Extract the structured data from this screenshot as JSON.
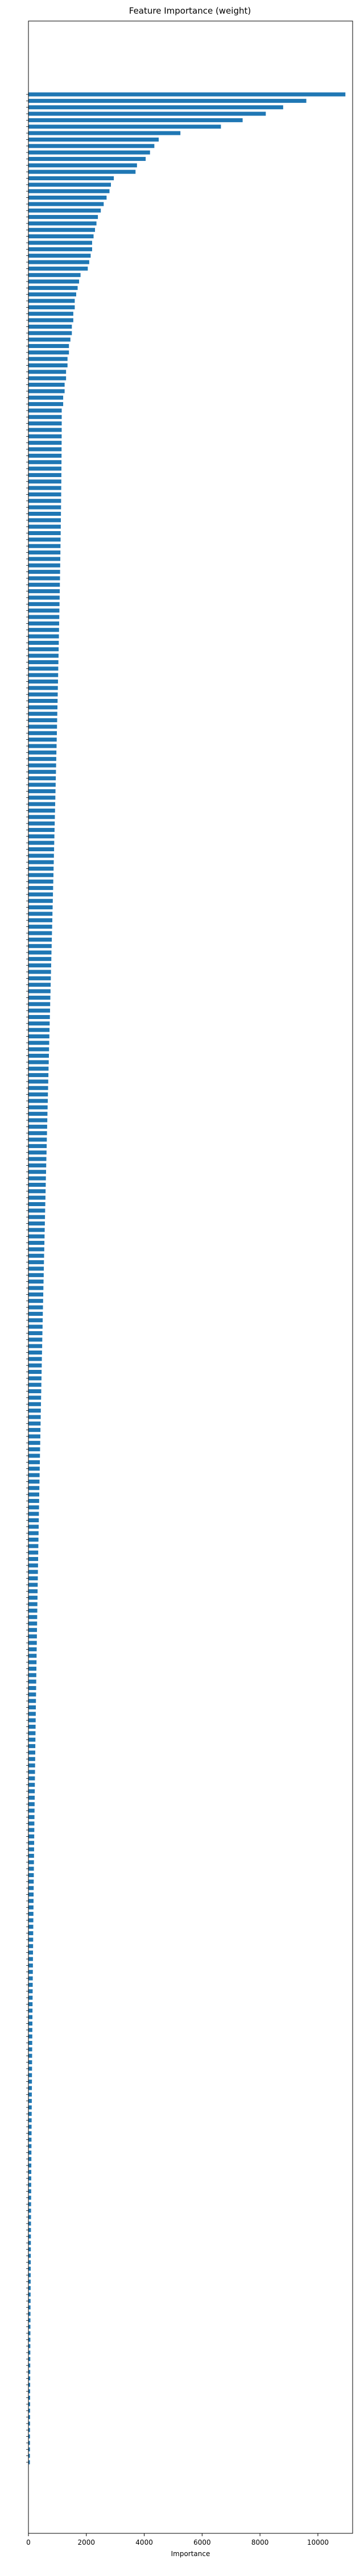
{
  "chart_data": {
    "type": "bar",
    "orientation": "horizontal",
    "title": "Feature Importance (weight)",
    "xlabel": "Importance",
    "ylabel": "",
    "xlim": [
      0,
      11200
    ],
    "xticks": [
      0,
      2000,
      4000,
      6000,
      8000,
      10000
    ],
    "grid": false,
    "legend": "none",
    "bar_color": "#1f77b4",
    "bar_count": 368,
    "top_values": [
      10950,
      9600,
      8800,
      8200,
      7400,
      6650,
      5250,
      4500,
      4350,
      4200,
      4050,
      3750,
      3700,
      2950,
      2850,
      2800,
      2700,
      2600,
      2500,
      2400,
      2350,
      2300,
      2250,
      2200,
      2200,
      2150,
      2100,
      2050,
      1800,
      1750,
      1700,
      1650,
      1600,
      1600,
      1550,
      1550,
      1500,
      1500,
      1450,
      1400,
      1400,
      1350,
      1350,
      1300,
      1300,
      1250,
      1250,
      1200,
      1200,
      1150
    ],
    "tail_start": 1150,
    "tail_end": 50
  }
}
